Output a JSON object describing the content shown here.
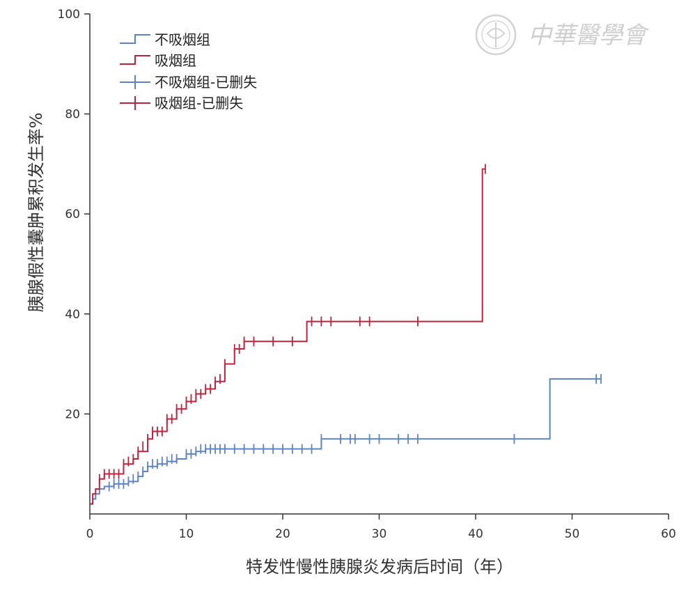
{
  "colors": {
    "nonsmoker": "#5b84c4",
    "smoker": "#c0223b",
    "axis": "#333333",
    "watermark": "#cfcfcf"
  },
  "watermark": {
    "text": "中華醫學會",
    "logo": "seal-icon"
  },
  "chart_data": {
    "type": "line",
    "step": true,
    "xlabel": "特发性慢性胰腺炎发病后时间（年）",
    "ylabel": "胰腺假性囊肿累积发生率%",
    "xlim": [
      0,
      60
    ],
    "ylim": [
      0,
      100
    ],
    "xticks": [
      0,
      10,
      20,
      30,
      40,
      50,
      60
    ],
    "yticks": [
      20,
      40,
      60,
      80,
      100
    ],
    "grid": false,
    "legend_position": "top-left",
    "legend": [
      "不吸烟组",
      "吸烟组",
      "不吸烟组-已删失",
      "吸烟组-已删失"
    ],
    "series": [
      {
        "name": "不吸烟组",
        "color_key": "nonsmoker",
        "points": [
          [
            0,
            2
          ],
          [
            0.3,
            3
          ],
          [
            0.6,
            4
          ],
          [
            1,
            5
          ],
          [
            1.5,
            5.5
          ],
          [
            2.5,
            6
          ],
          [
            3.5,
            6
          ],
          [
            4,
            6.5
          ],
          [
            5,
            7.5
          ],
          [
            5.5,
            8.5
          ],
          [
            6,
            9.5
          ],
          [
            7,
            10
          ],
          [
            8,
            10.5
          ],
          [
            9,
            11
          ],
          [
            10,
            12
          ],
          [
            11,
            12.5
          ],
          [
            12,
            13
          ],
          [
            24,
            13
          ],
          [
            24,
            15
          ],
          [
            47.7,
            15
          ],
          [
            47.7,
            27
          ],
          [
            53,
            27
          ]
        ],
        "censored": [
          [
            2,
            5.5
          ],
          [
            2.5,
            6
          ],
          [
            3,
            6
          ],
          [
            3.5,
            6
          ],
          [
            4,
            6.5
          ],
          [
            4.5,
            7
          ],
          [
            5,
            7.5
          ],
          [
            5.5,
            8.5
          ],
          [
            6,
            9.5
          ],
          [
            6.5,
            10
          ],
          [
            7,
            10
          ],
          [
            7.5,
            10.5
          ],
          [
            8,
            10.5
          ],
          [
            8.5,
            11
          ],
          [
            9,
            11
          ],
          [
            10,
            12
          ],
          [
            10.5,
            12
          ],
          [
            11,
            12.5
          ],
          [
            11.5,
            13
          ],
          [
            12,
            13
          ],
          [
            12.5,
            13
          ],
          [
            13,
            13
          ],
          [
            13.5,
            13
          ],
          [
            14,
            13
          ],
          [
            15,
            13
          ],
          [
            16,
            13
          ],
          [
            17,
            13
          ],
          [
            18,
            13
          ],
          [
            19,
            13
          ],
          [
            20,
            13
          ],
          [
            21,
            13
          ],
          [
            22,
            13
          ],
          [
            23,
            13
          ],
          [
            24,
            15
          ],
          [
            26,
            15
          ],
          [
            27,
            15
          ],
          [
            27.5,
            15
          ],
          [
            29,
            15
          ],
          [
            30,
            15
          ],
          [
            32,
            15
          ],
          [
            33,
            15
          ],
          [
            34,
            15
          ],
          [
            44,
            15
          ],
          [
            52.5,
            27
          ],
          [
            53,
            27
          ]
        ]
      },
      {
        "name": "吸烟组",
        "color_key": "smoker",
        "points": [
          [
            0,
            2
          ],
          [
            0.3,
            4
          ],
          [
            0.6,
            5
          ],
          [
            1,
            7
          ],
          [
            1.5,
            8
          ],
          [
            3,
            8
          ],
          [
            3.5,
            10
          ],
          [
            4.5,
            11
          ],
          [
            5,
            12.5
          ],
          [
            6,
            15
          ],
          [
            6.5,
            16.5
          ],
          [
            8,
            19
          ],
          [
            9,
            21
          ],
          [
            10,
            22.5
          ],
          [
            11,
            24
          ],
          [
            12,
            25
          ],
          [
            13,
            26.5
          ],
          [
            14,
            30
          ],
          [
            15,
            33
          ],
          [
            16,
            34.5
          ],
          [
            22.5,
            34.5
          ],
          [
            22.5,
            38.5
          ],
          [
            40.7,
            38.5
          ],
          [
            40.7,
            69
          ],
          [
            41,
            69
          ]
        ],
        "censored": [
          [
            1,
            7
          ],
          [
            1.5,
            8
          ],
          [
            2,
            8
          ],
          [
            2.5,
            8
          ],
          [
            3,
            8
          ],
          [
            3.5,
            10
          ],
          [
            4,
            10.5
          ],
          [
            4.5,
            11
          ],
          [
            5,
            12.5
          ],
          [
            5.5,
            13.5
          ],
          [
            6,
            15
          ],
          [
            6.5,
            16.5
          ],
          [
            7,
            16.5
          ],
          [
            7.5,
            16.5
          ],
          [
            8,
            19
          ],
          [
            8.5,
            19
          ],
          [
            9,
            21
          ],
          [
            9.5,
            21
          ],
          [
            10,
            22.5
          ],
          [
            10.5,
            23
          ],
          [
            11,
            24
          ],
          [
            11.5,
            24
          ],
          [
            12,
            25
          ],
          [
            12.5,
            25
          ],
          [
            13,
            26.5
          ],
          [
            13.5,
            27
          ],
          [
            14,
            30
          ],
          [
            15,
            33
          ],
          [
            15.5,
            33
          ],
          [
            16,
            34.5
          ],
          [
            17,
            34.5
          ],
          [
            19,
            34.5
          ],
          [
            21,
            34.5
          ],
          [
            23,
            38.5
          ],
          [
            24,
            38.5
          ],
          [
            25,
            38.5
          ],
          [
            28,
            38.5
          ],
          [
            29,
            38.5
          ],
          [
            34,
            38.5
          ],
          [
            41,
            69
          ]
        ]
      }
    ]
  }
}
